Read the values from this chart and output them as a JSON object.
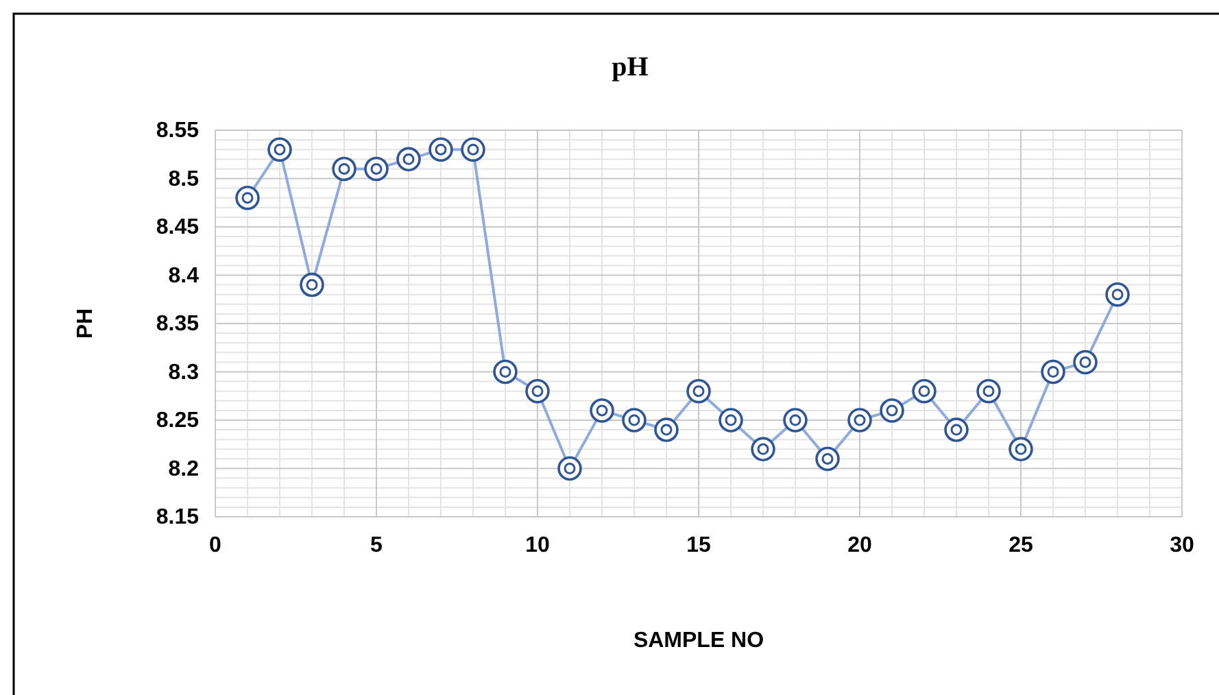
{
  "chart_data": {
    "type": "line",
    "title": "pH",
    "xlabel": "SAMPLE NO",
    "ylabel": "PH",
    "x": [
      1,
      2,
      3,
      4,
      5,
      6,
      7,
      8,
      9,
      10,
      11,
      12,
      13,
      14,
      15,
      16,
      17,
      18,
      19,
      20,
      21,
      22,
      23,
      24,
      25,
      26,
      27,
      28
    ],
    "series": [
      {
        "color": "#8faadc",
        "values": [
          8.48,
          8.53,
          8.39,
          8.51,
          8.51,
          8.52,
          8.53,
          8.53,
          8.3,
          8.28,
          8.2,
          8.26,
          8.25,
          8.24,
          8.28,
          8.25,
          8.22,
          8.25,
          8.21,
          8.25,
          8.26,
          8.28,
          8.24,
          8.28,
          8.22,
          8.3,
          8.31,
          8.38
        ]
      }
    ],
    "xlim": [
      0,
      30
    ],
    "xticks": [
      0,
      5,
      10,
      15,
      20,
      25,
      30
    ],
    "ylim": [
      8.15,
      8.55
    ],
    "yticks": [
      8.15,
      8.2,
      8.25,
      8.3,
      8.35,
      8.4,
      8.45,
      8.5,
      8.55
    ],
    "grid": true,
    "marker": "circle",
    "line_style": "solid"
  }
}
